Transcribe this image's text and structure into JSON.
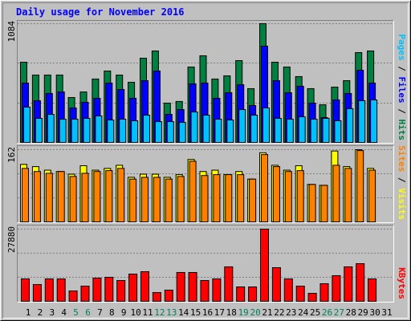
{
  "chart_data": [
    {
      "type": "bar",
      "title": "Daily usage for November 2016",
      "ylim": [
        0,
        1084
      ],
      "yticks": [
        1084
      ],
      "legend_separator": " / ",
      "series": [
        {
          "name": "Hits",
          "color": "#008040",
          "values": [
            732,
            615,
            615,
            615,
            410,
            461,
            579,
            652,
            615,
            549,
            769,
            835,
            359,
            374,
            688,
            791,
            579,
            608,
            747,
            491,
            1084,
            732,
            688,
            601,
            491,
            344,
            505,
            564,
            820,
            835,
            null
          ]
        },
        {
          "name": "Files",
          "color": "#0000ff",
          "values": [
            542,
            381,
            447,
            461,
            315,
            366,
            403,
            542,
            483,
            403,
            564,
            652,
            256,
            300,
            535,
            542,
            403,
            454,
            527,
            337,
            879,
            564,
            454,
            513,
            359,
            227,
            388,
            447,
            659,
            542,
            null
          ]
        },
        {
          "name": "Pages",
          "color": "#00c0ff",
          "values": [
            322,
            220,
            256,
            212,
            212,
            220,
            242,
            205,
            212,
            198,
            249,
            190,
            190,
            183,
            278,
            249,
            212,
            205,
            300,
            249,
            315,
            220,
            212,
            234,
            212,
            220,
            198,
            308,
            381,
            388,
            null
          ]
        }
      ]
    },
    {
      "type": "bar",
      "ylim": [
        0,
        162
      ],
      "yticks": [
        162
      ],
      "legend_separator": " / ",
      "series": [
        {
          "name": "Visits",
          "color": "#ffff00",
          "values": [
            129,
            124,
            116,
            113,
            107,
            126,
            116,
            120,
            127,
            100,
            107,
            107,
            100,
            106,
            140,
            113,
            116,
            106,
            113,
            96,
            155,
            127,
            116,
            126,
            84,
            82,
            159,
            124,
            162,
            120,
            null
          ]
        },
        {
          "name": "Sites",
          "color": "#ff8000",
          "values": [
            120,
            113,
            109,
            113,
            102,
            109,
            113,
            115,
            120,
            96,
            100,
            100,
            96,
            102,
            136,
            104,
            106,
            106,
            106,
            96,
            151,
            124,
            113,
            115,
            84,
            82,
            127,
            120,
            160,
            116,
            null
          ]
        }
      ]
    },
    {
      "type": "bar",
      "ylim": [
        0,
        27880
      ],
      "yticks": [
        27880
      ],
      "series": [
        {
          "name": "KBytes",
          "color": "#ff0000",
          "values": [
            8674,
            6505,
            8674,
            8674,
            4027,
            5886,
            8984,
            9293,
            8054,
            10532,
            11462,
            3408,
            4337,
            11152,
            11152,
            8054,
            8674,
            13320,
            5576,
            5576,
            27880,
            13011,
            8674,
            5886,
            3098,
            6815,
            9913,
            13320,
            14560,
            8674,
            null
          ]
        }
      ],
      "categories": [
        "1",
        "2",
        "3",
        "4",
        "5",
        "6",
        "7",
        "8",
        "9",
        "10",
        "11",
        "12",
        "13",
        "14",
        "15",
        "16",
        "17",
        "18",
        "19",
        "20",
        "21",
        "22",
        "23",
        "24",
        "25",
        "26",
        "27",
        "28",
        "29",
        "30",
        "31"
      ],
      "category_colors": [
        "#000",
        "#000",
        "#000",
        "#000",
        "#00805c",
        "#00805c",
        "#000",
        "#000",
        "#000",
        "#000",
        "#000",
        "#00805c",
        "#00805c",
        "#000",
        "#000",
        "#000",
        "#000",
        "#000",
        "#00805c",
        "#00805c",
        "#000",
        "#000",
        "#000",
        "#000",
        "#000",
        "#00805c",
        "#00805c",
        "#000",
        "#000",
        "#000",
        "#000"
      ]
    }
  ]
}
